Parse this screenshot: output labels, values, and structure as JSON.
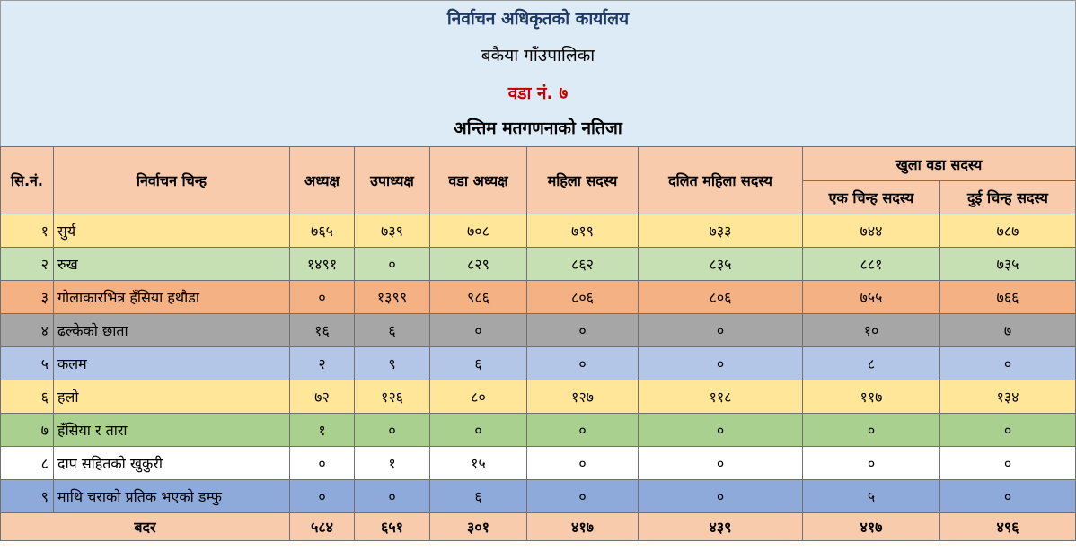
{
  "header": {
    "title": "निर्वाचन अधिकृतको कार्यालय",
    "municipality": "बकैया गाँउपालिका",
    "ward": "वडा नं. ७",
    "result_title": "अन्तिम मतगणनाको नतिजा"
  },
  "columns": {
    "sn": "सि.नं.",
    "symbol": "निर्वाचन चिन्ह",
    "chair": "अध्यक्ष",
    "vice_chair": "उपाध्यक्ष",
    "ward_chair": "वडा अध्यक्ष",
    "woman_member": "महिला सदस्य",
    "dalit_woman_member": "दलित महिला सदस्य",
    "open_ward_member": "खुला वडा सदस्य",
    "one_symbol_member": "एक चिन्ह सदस्य",
    "two_symbol_member": "दुई चिन्ह सदस्य"
  },
  "rows": [
    {
      "sn": "१",
      "party": "सुर्य",
      "v": [
        "७६५",
        "७३९",
        "७०८",
        "७१९",
        "७३३",
        "७४४",
        "७८७"
      ],
      "color": "#ffe699"
    },
    {
      "sn": "२",
      "party": "रुख",
      "v": [
        "१४९१",
        "०",
        "८२९",
        "८६२",
        "८३५",
        "८८१",
        "७३५"
      ],
      "color": "#c6e0b4"
    },
    {
      "sn": "३",
      "party": "गोलाकारभित्र हँसिया हथौडा",
      "v": [
        "०",
        "१३९९",
        "९८६",
        "८०६",
        "८०६",
        "७५५",
        "७६६"
      ],
      "color": "#f4b183"
    },
    {
      "sn": "४",
      "party": "ढल्केको छाता",
      "v": [
        "१६",
        "६",
        "०",
        "०",
        "०",
        "१०",
        "७"
      ],
      "color": "#a6a6a6"
    },
    {
      "sn": "५",
      "party": "कलम",
      "v": [
        "२",
        "९",
        "६",
        "०",
        "०",
        "८",
        "०"
      ],
      "color": "#b4c6e7"
    },
    {
      "sn": "६",
      "party": "हलो",
      "v": [
        "७२",
        "१२६",
        "८०",
        "१२७",
        "११८",
        "११७",
        "१३४"
      ],
      "color": "#ffe699"
    },
    {
      "sn": "७",
      "party": "हँसिया र तारा",
      "v": [
        "१",
        "०",
        "०",
        "०",
        "०",
        "०",
        "०"
      ],
      "color": "#a9d08e"
    },
    {
      "sn": "८",
      "party": "दाप सहितको खुकुरी",
      "v": [
        "०",
        "१",
        "१५",
        "०",
        "०",
        "०",
        "०"
      ],
      "color": "#ffffff"
    },
    {
      "sn": "९",
      "party": "माथि चराको प्रतिक भएको डम्फु",
      "v": [
        "०",
        "०",
        "६",
        "०",
        "०",
        "५",
        "०"
      ],
      "color": "#8eaadb"
    }
  ],
  "total": {
    "label": "बदर",
    "v": [
      "५८४",
      "६५१",
      "३०१",
      "४१७",
      "४३९",
      "४१७",
      "४९६"
    ]
  }
}
